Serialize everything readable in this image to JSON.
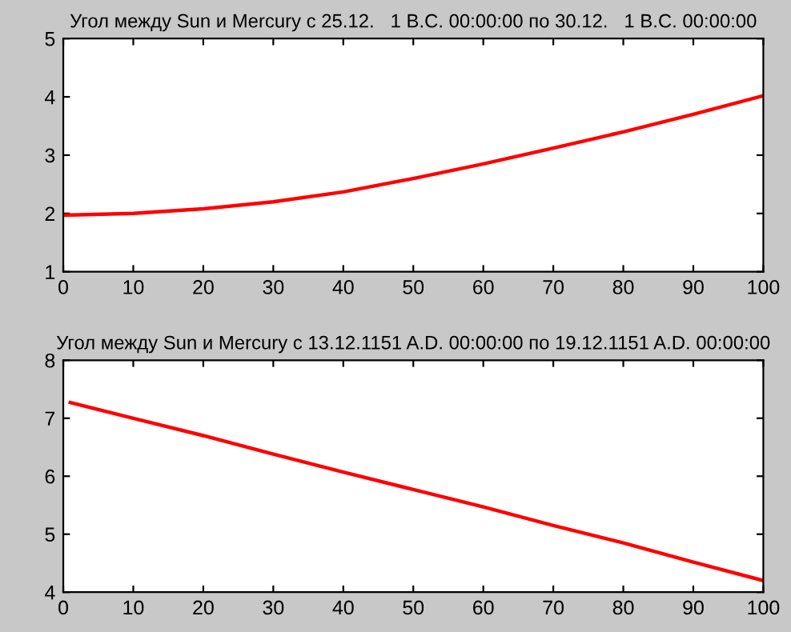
{
  "chart_data": [
    {
      "type": "line",
      "title": "Угол между Sun и Mercury с 25.12.   1 B.C. 00:00:00 по 30.12.   1 B.C. 00:00:00",
      "xlim": [
        0,
        100
      ],
      "ylim": [
        1,
        5
      ],
      "xticks": [
        0,
        10,
        20,
        30,
        40,
        50,
        60,
        70,
        80,
        90,
        100
      ],
      "yticks": [
        1,
        2,
        3,
        4,
        5
      ],
      "grid": false,
      "marker": "none",
      "line_style": "solid",
      "series": [
        {
          "color": "#ff0000",
          "x": [
            0,
            10,
            20,
            30,
            40,
            50,
            60,
            70,
            80,
            90,
            100
          ],
          "values": [
            1.97,
            2.0,
            2.08,
            2.2,
            2.37,
            2.6,
            2.85,
            3.12,
            3.4,
            3.7,
            4.02
          ]
        }
      ]
    },
    {
      "type": "line",
      "title": "Угол между Sun и Mercury с 13.12.1151 A.D. 00:00:00 по 19.12.1151 A.D. 00:00:00",
      "xlim": [
        0,
        100
      ],
      "ylim": [
        4,
        8
      ],
      "xticks": [
        0,
        10,
        20,
        30,
        40,
        50,
        60,
        70,
        80,
        90,
        100
      ],
      "yticks": [
        4,
        5,
        6,
        7,
        8
      ],
      "grid": false,
      "marker": "none",
      "line_style": "solid",
      "series": [
        {
          "color": "#ff0000",
          "x": [
            1,
            10,
            20,
            30,
            40,
            50,
            60,
            70,
            80,
            90,
            100
          ],
          "values": [
            7.27,
            7.0,
            6.7,
            6.38,
            6.07,
            5.77,
            5.47,
            5.15,
            4.85,
            4.52,
            4.2
          ]
        }
      ]
    }
  ]
}
